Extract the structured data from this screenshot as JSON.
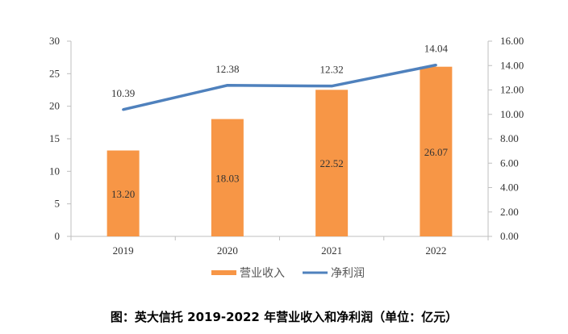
{
  "chart_data": {
    "type": "bar+line",
    "categories": [
      "2019",
      "2020",
      "2021",
      "2022"
    ],
    "series": [
      {
        "name": "营业收入",
        "type": "bar",
        "axis": "left",
        "values": [
          13.2,
          18.03,
          22.52,
          26.07
        ],
        "labels": [
          "13.20",
          "18.03",
          "22.52",
          "26.07"
        ],
        "color": "#F79646"
      },
      {
        "name": "净利润",
        "type": "line",
        "axis": "right",
        "values": [
          10.39,
          12.38,
          12.32,
          14.04
        ],
        "labels": [
          "10.39",
          "12.38",
          "12.32",
          "14.04"
        ],
        "color": "#4F81BD"
      }
    ],
    "left_axis": {
      "range": [
        0,
        30
      ],
      "ticks": [
        "0",
        "5",
        "10",
        "15",
        "20",
        "25",
        "30"
      ]
    },
    "right_axis": {
      "range": [
        0,
        16
      ],
      "ticks": [
        "0.00",
        "2.00",
        "4.00",
        "6.00",
        "8.00",
        "10.00",
        "12.00",
        "14.00",
        "16.00"
      ]
    },
    "grid": false,
    "legend": "bottom",
    "caption": "图：英大信托 2019-2022 年营业收入和净利润（单位：亿元）"
  }
}
